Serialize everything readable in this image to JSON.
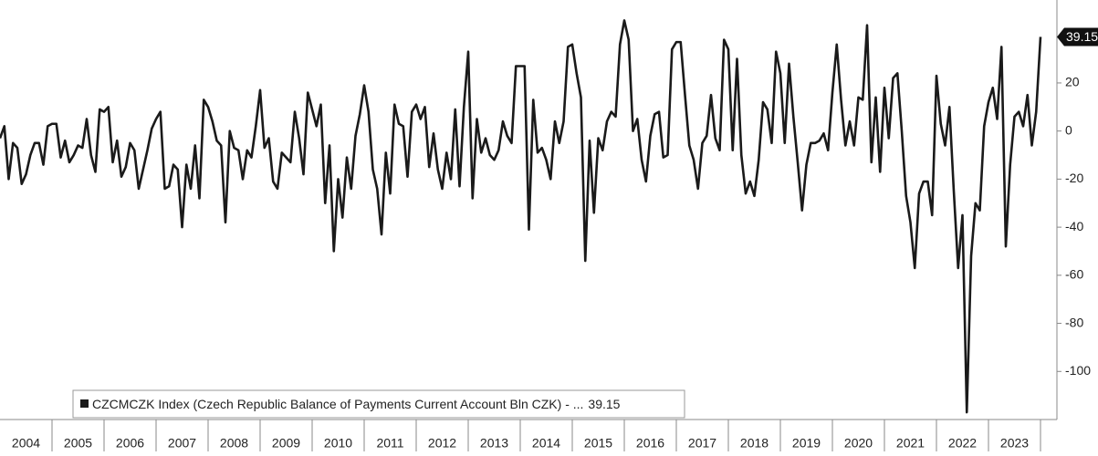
{
  "chart_data": {
    "type": "line",
    "categories": [
      "2004",
      null,
      null,
      null,
      null,
      null,
      null,
      null,
      null,
      null,
      null,
      null,
      "2005",
      null,
      null,
      null,
      null,
      null,
      null,
      null,
      null,
      null,
      null,
      null,
      "2006",
      null,
      null,
      null,
      null,
      null,
      null,
      null,
      null,
      null,
      null,
      null,
      "2007",
      null,
      null,
      null,
      null,
      null,
      null,
      null,
      null,
      null,
      null,
      null,
      "2008",
      null,
      null,
      null,
      null,
      null,
      null,
      null,
      null,
      null,
      null,
      null,
      "2009",
      null,
      null,
      null,
      null,
      null,
      null,
      null,
      null,
      null,
      null,
      null,
      "2010",
      null,
      null,
      null,
      null,
      null,
      null,
      null,
      null,
      null,
      null,
      null,
      "2011",
      null,
      null,
      null,
      null,
      null,
      null,
      null,
      null,
      null,
      null,
      null,
      "2012",
      null,
      null,
      null,
      null,
      null,
      null,
      null,
      null,
      null,
      null,
      null,
      "2013",
      null,
      null,
      null,
      null,
      null,
      null,
      null,
      null,
      null,
      null,
      null,
      "2014",
      null,
      null,
      null,
      null,
      null,
      null,
      null,
      null,
      null,
      null,
      null,
      "2015",
      null,
      null,
      null,
      null,
      null,
      null,
      null,
      null,
      null,
      null,
      null,
      "2016",
      null,
      null,
      null,
      null,
      null,
      null,
      null,
      null,
      null,
      null,
      null,
      "2017",
      null,
      null,
      null,
      null,
      null,
      null,
      null,
      null,
      null,
      null,
      null,
      "2018",
      null,
      null,
      null,
      null,
      null,
      null,
      null,
      null,
      null,
      null,
      null,
      "2019",
      null,
      null,
      null,
      null,
      null,
      null,
      null,
      null,
      null,
      null,
      null,
      "2020",
      null,
      null,
      null,
      null,
      null,
      null,
      null,
      null,
      null,
      null,
      null,
      "2021",
      null,
      null,
      null,
      null,
      null,
      null,
      null,
      null,
      null,
      null,
      null,
      "2022",
      null,
      null,
      null,
      null,
      null,
      null,
      null,
      null,
      null,
      null,
      null,
      "2023",
      null,
      null,
      null,
      null,
      null,
      null,
      null,
      null,
      null,
      null,
      null,
      null
    ],
    "series": [
      {
        "name": "CZCMCZK Index (Czech Republic Balance of Payments Current Account Bln CZK) - ...",
        "color": "#1a1a1a",
        "values": [
          -3,
          2,
          -20,
          -5,
          -7,
          -22,
          -18,
          -10,
          -5,
          -5,
          -14,
          2,
          3,
          3,
          -11,
          -4,
          -13,
          -10,
          -6,
          -7,
          5,
          -10,
          -17,
          9,
          8,
          10,
          -13,
          -4,
          -19,
          -15,
          -5,
          -8,
          -24,
          -16,
          -8,
          1,
          5,
          8,
          -24,
          -23,
          -14,
          -16,
          -40,
          -14,
          -24,
          -6,
          -28,
          13,
          10,
          4,
          -4,
          -6,
          -38,
          0,
          -7,
          -8,
          -20,
          -8,
          -11,
          2,
          17,
          -7,
          -3,
          -21,
          -24,
          -9,
          -11,
          -13,
          8,
          -3,
          -18,
          16,
          9,
          2,
          11,
          -30,
          -6,
          -50,
          -20,
          -36,
          -11,
          -24,
          -2,
          7,
          19,
          8,
          -16,
          -24,
          -43,
          -9,
          -26,
          11,
          3,
          2,
          -19,
          8,
          11,
          5,
          10,
          -15,
          -1,
          -16,
          -24,
          -9,
          -20,
          9,
          -23,
          10,
          33,
          -28,
          5,
          -9,
          -3,
          -10,
          -12,
          -8,
          4,
          -2,
          -5,
          27,
          27,
          27,
          -41,
          13,
          -9,
          -7,
          -12,
          -20,
          4,
          -5,
          4,
          35,
          36,
          24,
          14,
          -54,
          -4,
          -34,
          -3,
          -8,
          4,
          8,
          6,
          36,
          46,
          38,
          0,
          5,
          -12,
          -21,
          -2,
          7,
          8,
          -11,
          -10,
          34,
          37,
          37,
          15,
          -6,
          -12,
          -24,
          -5,
          -2,
          15,
          -3,
          -8,
          38,
          34,
          -8,
          30,
          -10,
          -26,
          -21,
          -27,
          -12,
          12,
          9,
          -5,
          33,
          24,
          -5,
          28,
          6,
          -13,
          -33,
          -14,
          -5,
          -5,
          -4,
          -1,
          -8,
          16,
          36,
          13,
          -6,
          4,
          -6,
          14,
          13,
          44,
          -13,
          14,
          -17,
          18,
          -3,
          22,
          24,
          0,
          -27,
          -38,
          -57,
          -26,
          -21,
          -21,
          -35,
          23,
          3,
          -6,
          10,
          -25,
          -57,
          -35,
          -117,
          -52,
          -30,
          -33,
          2,
          12,
          18,
          5,
          35,
          -48,
          -14,
          6,
          8,
          2,
          15,
          -6,
          8,
          39.15
        ]
      }
    ],
    "ylim": [
      -120,
      54.5
    ],
    "yticks": [
      -100,
      -80,
      -60,
      -40,
      -20,
      0,
      20
    ],
    "grid": false,
    "legend": "bottom-left"
  }
}
